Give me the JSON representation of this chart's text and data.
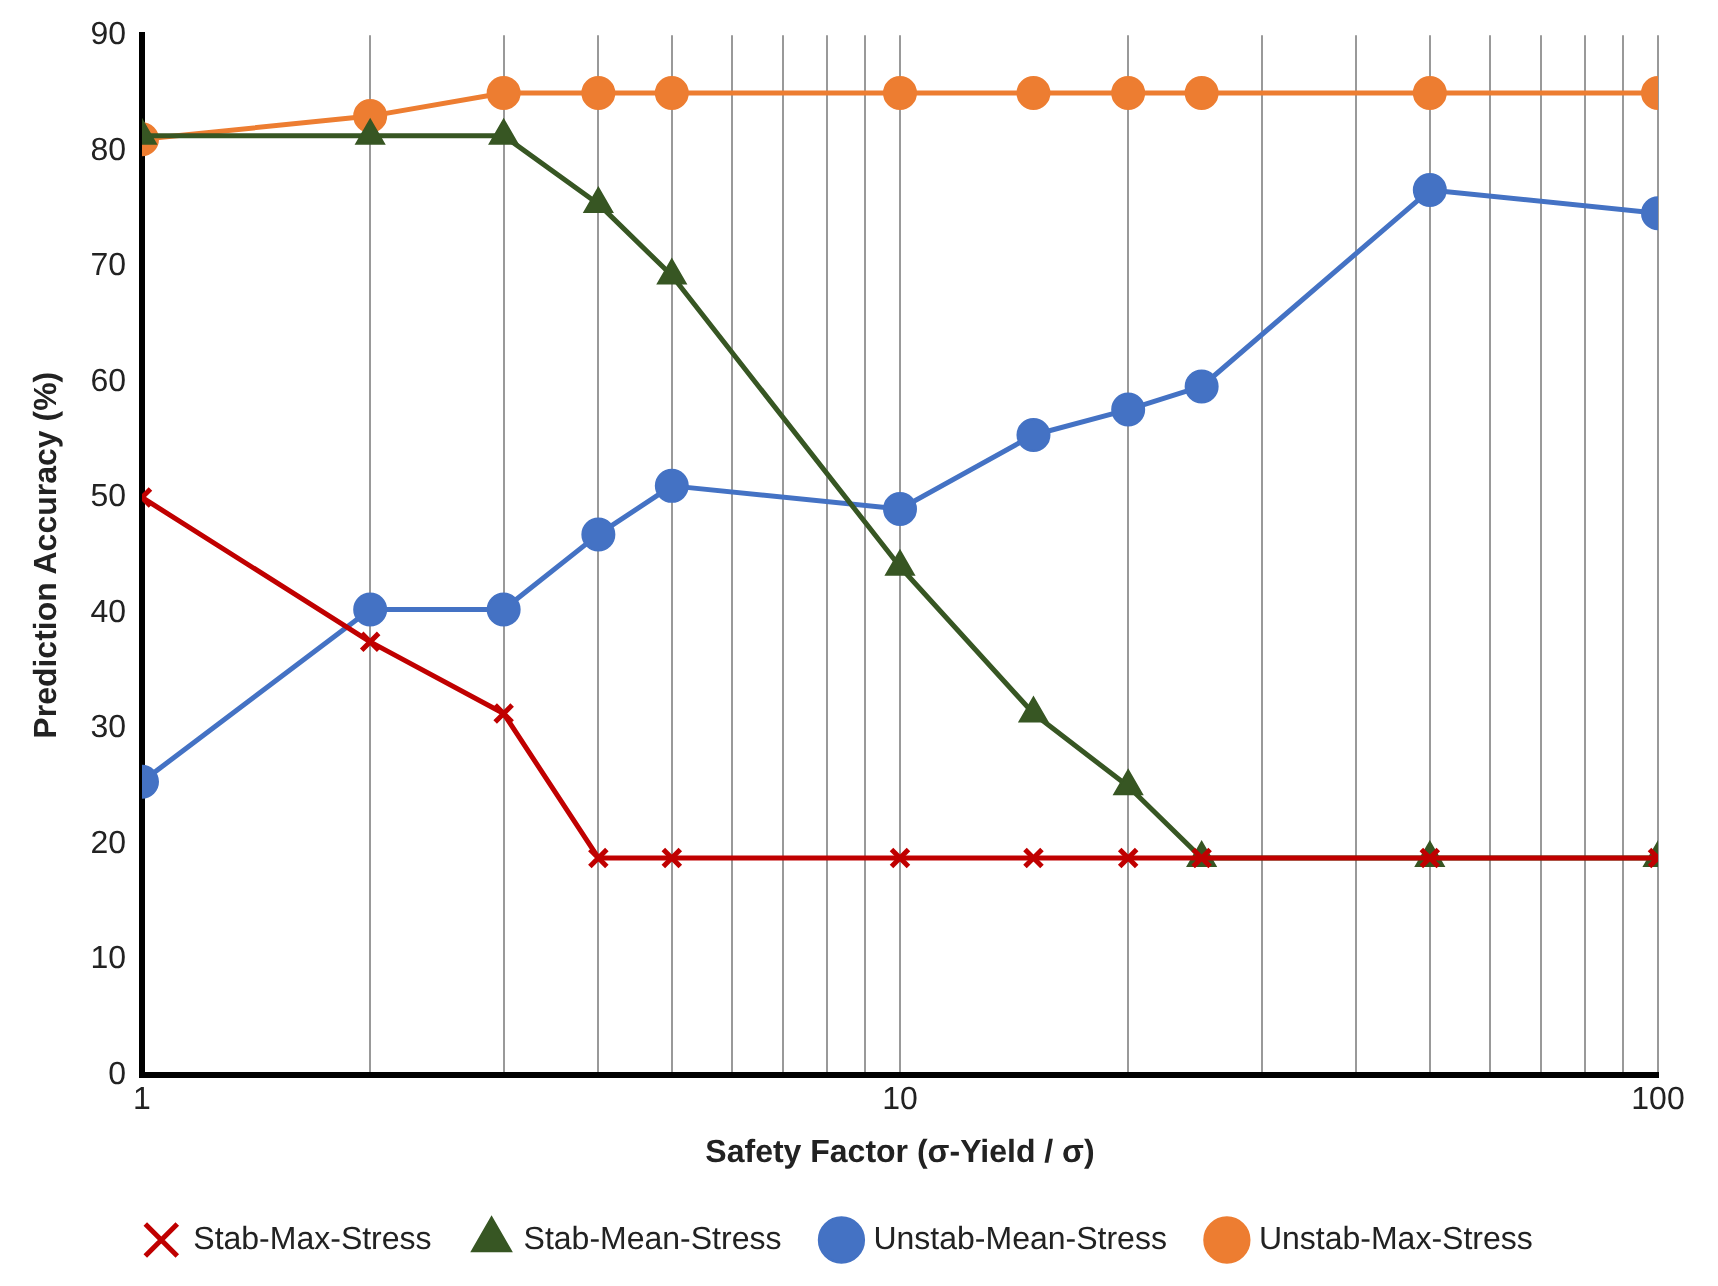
{
  "chart_data": {
    "type": "line",
    "xlabel": "Safety Factor (σ-Yield / σ)",
    "ylabel": "Prediction Accuracy (%)",
    "log": "x",
    "xlim": [
      1,
      100
    ],
    "ylim": [
      0,
      90
    ],
    "xticks": [
      1,
      {
        "value": 2,
        "label": null
      },
      {
        "value": 3,
        "label": null
      },
      {
        "value": 4,
        "label": null
      },
      {
        "value": 5,
        "label": null
      },
      {
        "value": 6,
        "label": null
      },
      {
        "value": 7,
        "label": null
      },
      {
        "value": 8,
        "label": null
      },
      {
        "value": 9,
        "label": null
      },
      10,
      {
        "value": 20,
        "label": null
      },
      {
        "value": 30,
        "label": null
      },
      {
        "value": 40,
        "label": null
      },
      {
        "value": 50,
        "label": null
      },
      {
        "value": 60,
        "label": null
      },
      {
        "value": 70,
        "label": null
      },
      {
        "value": 80,
        "label": null
      },
      {
        "value": 90,
        "label": null
      },
      100
    ],
    "yticks": [
      0,
      10,
      20,
      30,
      40,
      50,
      60,
      70,
      80,
      90
    ],
    "grid": "x",
    "legend": "bottom",
    "line_style": "solid",
    "x": [
      1,
      2,
      3,
      4,
      5,
      10,
      15,
      20,
      25,
      50,
      100
    ],
    "series": [
      {
        "name": "Stab-Mean-Stress",
        "color": "#375623",
        "marker": "triangle",
        "values": [
          81.3,
          81.3,
          81.3,
          75.4,
          69.2,
          44,
          31.3,
          25,
          18.8,
          18.8,
          18.8
        ]
      },
      {
        "name": "Stab-Max-Stress",
        "color": "#c00000",
        "marker": "cross",
        "values": [
          50,
          37.5,
          31.3,
          18.8,
          18.8,
          18.8,
          18.8,
          18.8,
          18.8,
          18.8,
          18.8
        ]
      },
      {
        "name": "Unstab-Mean-Stress",
        "color": "#4472c4",
        "marker": "circle",
        "values": [
          25.4,
          40.3,
          40.3,
          46.8,
          51,
          49,
          55.4,
          57.6,
          59.6,
          76.6,
          74.6
        ]
      },
      {
        "name": "Unstab-Max-Stress",
        "color": "#ed7d31",
        "marker": "circle",
        "values": [
          81,
          83,
          85,
          85,
          85,
          85,
          85,
          85,
          85,
          85,
          85
        ]
      }
    ]
  }
}
